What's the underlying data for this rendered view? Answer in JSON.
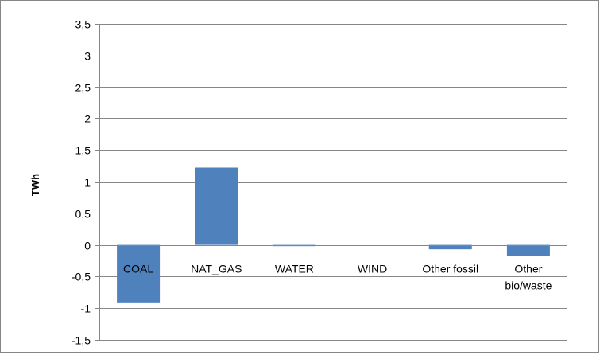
{
  "chart_data": {
    "type": "bar",
    "title": "",
    "xlabel": "",
    "ylabel": "TWh",
    "ylim": [
      -1.5,
      3.5
    ],
    "yticks": [
      3.5,
      3,
      2.5,
      2,
      1.5,
      1,
      0.5,
      0,
      -0.5,
      -1,
      -1.5
    ],
    "ytick_labels": [
      "3,5",
      "3",
      "2,5",
      "2",
      "1,5",
      "1",
      "0,5",
      "0",
      "-0,5",
      "-1",
      "-1,5"
    ],
    "grid": true,
    "categories": [
      "COAL",
      "NAT_GAS",
      "WATER",
      "WIND",
      "Other fossil",
      "Other bio/waste"
    ],
    "category_label_lines": [
      [
        "COAL"
      ],
      [
        "NAT_GAS"
      ],
      [
        "WATER"
      ],
      [
        "WIND"
      ],
      [
        "Other fossil"
      ],
      [
        "Other",
        "bio/waste"
      ]
    ],
    "values": [
      -0.92,
      1.22,
      -0.02,
      0.0,
      -0.07,
      -0.18
    ],
    "bar_color": "#4f81bd",
    "gridline_color": "#868686",
    "frame_color": "#868686"
  }
}
